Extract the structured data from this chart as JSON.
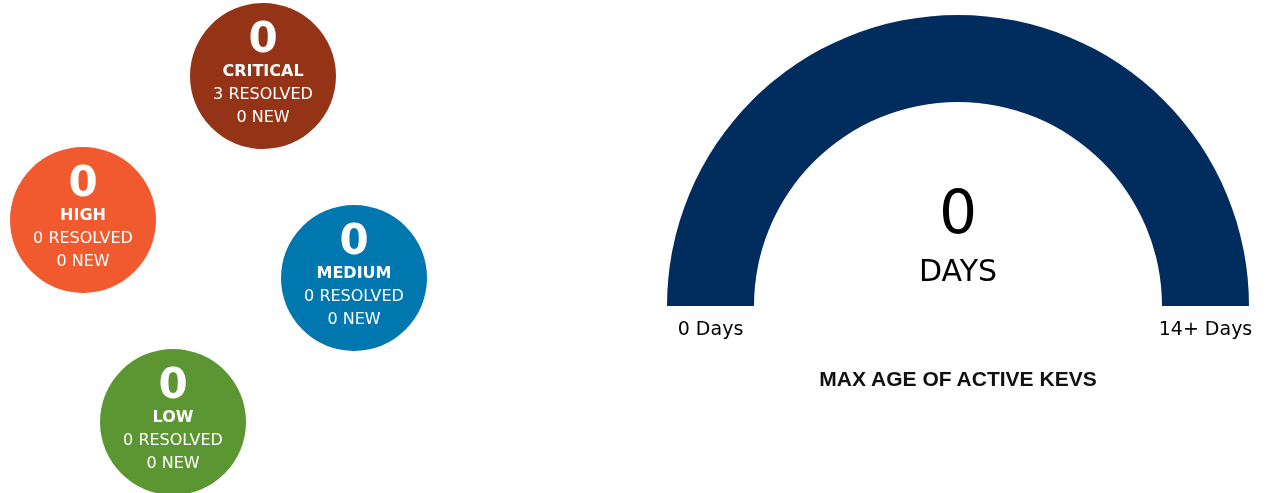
{
  "chart_data": [
    {
      "type": "other",
      "categories": [
        "CRITICAL",
        "HIGH",
        "MEDIUM",
        "LOW"
      ],
      "values": [
        0,
        0,
        0,
        0
      ],
      "data_labels": true,
      "colors": [
        "#943315",
        "#f15a2e",
        "#0077ae",
        "#5c9632"
      ],
      "annotations": [
        "3 RESOLVED",
        "0 NEW",
        "0 RESOLVED",
        "0 NEW",
        "0 RESOLVED",
        "0 NEW",
        "0 RESOLVED",
        "0 NEW"
      ]
    },
    {
      "type": "other",
      "title": "MAX AGE OF ACTIVE KEVS",
      "values": [
        0
      ],
      "data_labels": true,
      "colors": [
        "#002d5e"
      ],
      "annotations": [
        "DAYS",
        "0 Days",
        "14+ Days"
      ]
    }
  ]
}
